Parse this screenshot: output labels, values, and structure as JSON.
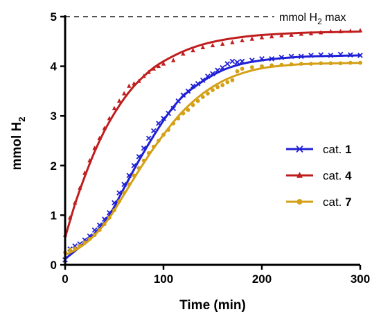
{
  "chart_data": {
    "type": "scatter",
    "xlabel": "Time (min)",
    "ylabel": {
      "main": "mmol H",
      "sub": "2"
    },
    "xlim": [
      0,
      300
    ],
    "ylim": [
      0,
      5
    ],
    "x_ticks": [
      0,
      100,
      200,
      300
    ],
    "y_ticks": [
      0,
      1,
      2,
      3,
      4,
      5
    ],
    "x_tick_labels": [
      "0",
      "100",
      "200",
      "300"
    ],
    "y_tick_labels": [
      "0",
      "1",
      "2",
      "3",
      "4",
      "5"
    ],
    "grid": false,
    "legend_position": "right",
    "reference_line": {
      "y": 5,
      "style": "dashed",
      "color": "#555555",
      "label": {
        "pre": "mmol H",
        "sub": "2",
        "post": " max"
      }
    },
    "series": [
      {
        "name": "cat. 1",
        "legend_prefix": "cat. ",
        "legend_bold": "1",
        "color": "#1f1fd6",
        "marker": "x",
        "fit": {
          "model": "sigmoid",
          "x": [
            0,
            15,
            30,
            45,
            60,
            75,
            90,
            105,
            120,
            140,
            160,
            180,
            200,
            225,
            250,
            275,
            300
          ],
          "y": [
            0.12,
            0.36,
            0.63,
            1.0,
            1.55,
            2.1,
            2.6,
            3.05,
            3.4,
            3.7,
            3.92,
            4.05,
            4.12,
            4.17,
            4.2,
            4.21,
            4.22
          ]
        },
        "x": [
          0,
          5,
          10,
          15,
          20,
          25,
          30,
          35,
          40,
          45,
          50,
          55,
          60,
          65,
          70,
          75,
          80,
          85,
          90,
          95,
          100,
          105,
          110,
          115,
          120,
          125,
          130,
          135,
          140,
          145,
          150,
          155,
          160,
          165,
          170,
          175,
          180,
          190,
          200,
          210,
          220,
          230,
          240,
          250,
          260,
          270,
          280,
          290,
          300
        ],
        "y": [
          0.1,
          0.32,
          0.38,
          0.42,
          0.5,
          0.58,
          0.7,
          0.8,
          0.92,
          1.05,
          1.25,
          1.45,
          1.62,
          1.8,
          2.0,
          2.18,
          2.35,
          2.55,
          2.7,
          2.85,
          2.95,
          3.05,
          3.15,
          3.3,
          3.42,
          3.5,
          3.6,
          3.65,
          3.72,
          3.8,
          3.85,
          3.92,
          3.97,
          4.05,
          4.1,
          4.08,
          4.1,
          4.12,
          4.15,
          4.15,
          4.18,
          4.2,
          4.2,
          4.22,
          4.23,
          4.22,
          4.24,
          4.23,
          4.22
        ]
      },
      {
        "name": "cat. 4",
        "legend_prefix": "cat. ",
        "legend_bold": "4",
        "color": "#c01e1e",
        "marker": "triangle",
        "fit": {
          "model": "exponential",
          "x": [
            0,
            10,
            20,
            30,
            40,
            50,
            60,
            70,
            80,
            90,
            100,
            120,
            140,
            160,
            180,
            200,
            225,
            250,
            275,
            300
          ],
          "y": [
            0.55,
            1.22,
            1.78,
            2.28,
            2.7,
            3.05,
            3.35,
            3.6,
            3.8,
            3.97,
            4.1,
            4.3,
            4.44,
            4.53,
            4.59,
            4.63,
            4.66,
            4.68,
            4.69,
            4.7
          ]
        },
        "x": [
          0,
          5,
          10,
          15,
          20,
          25,
          30,
          35,
          40,
          45,
          50,
          55,
          60,
          65,
          70,
          75,
          80,
          85,
          90,
          95,
          100,
          110,
          120,
          130,
          140,
          150,
          160,
          170,
          180,
          190,
          200,
          210,
          220,
          230,
          240,
          250,
          260,
          270,
          280,
          290,
          300
        ],
        "y": [
          0.6,
          0.95,
          1.25,
          1.55,
          1.85,
          2.1,
          2.35,
          2.55,
          2.75,
          2.95,
          3.15,
          3.3,
          3.45,
          3.6,
          3.65,
          3.7,
          3.8,
          3.88,
          3.95,
          4.0,
          4.05,
          4.12,
          4.25,
          4.32,
          4.38,
          4.42,
          4.45,
          4.48,
          4.52,
          4.55,
          4.58,
          4.6,
          4.62,
          4.63,
          4.65,
          4.66,
          4.68,
          4.7,
          4.7,
          4.71,
          4.72
        ]
      },
      {
        "name": "cat. 7",
        "legend_prefix": "cat. ",
        "legend_bold": "7",
        "color": "#d4a017",
        "marker": "circle",
        "fit": {
          "model": "sigmoid",
          "x": [
            0,
            15,
            30,
            45,
            60,
            75,
            90,
            105,
            120,
            140,
            160,
            180,
            200,
            225,
            250,
            275,
            300
          ],
          "y": [
            0.2,
            0.35,
            0.6,
            0.95,
            1.42,
            1.9,
            2.35,
            2.75,
            3.1,
            3.45,
            3.7,
            3.86,
            3.96,
            4.02,
            4.05,
            4.06,
            4.07
          ]
        },
        "x": [
          0,
          5,
          10,
          15,
          20,
          25,
          30,
          35,
          40,
          45,
          50,
          55,
          60,
          65,
          70,
          75,
          80,
          85,
          90,
          95,
          100,
          105,
          110,
          115,
          120,
          125,
          130,
          135,
          140,
          145,
          150,
          155,
          160,
          165,
          170,
          175,
          180,
          190,
          200,
          210,
          220,
          230,
          240,
          250,
          260,
          270,
          280,
          290,
          300
        ],
        "y": [
          0.25,
          0.3,
          0.33,
          0.38,
          0.45,
          0.52,
          0.6,
          0.7,
          0.82,
          0.95,
          1.1,
          1.28,
          1.45,
          1.62,
          1.8,
          1.95,
          2.1,
          2.25,
          2.38,
          2.5,
          2.62,
          2.72,
          2.85,
          2.95,
          3.05,
          3.12,
          3.22,
          3.3,
          3.38,
          3.45,
          3.52,
          3.58,
          3.62,
          3.68,
          3.72,
          3.9,
          3.95,
          3.98,
          4.0,
          4.02,
          4.03,
          4.04,
          4.05,
          4.05,
          4.06,
          4.06,
          4.06,
          4.07,
          4.07
        ]
      }
    ]
  }
}
